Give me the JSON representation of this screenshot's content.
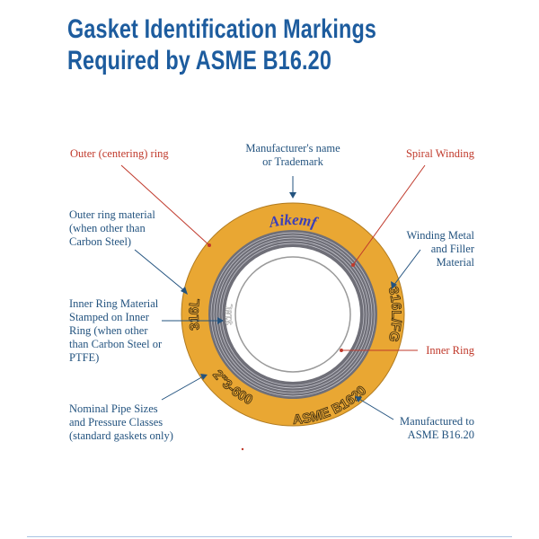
{
  "title": {
    "line1": "Gasket Identification Markings",
    "line2": "Required by ASME B16.20"
  },
  "labels": {
    "outer_ring": "Outer (centering) ring",
    "manufacturer": [
      "Manufacturer's name",
      "or Trademark"
    ],
    "spiral_winding": "Spiral Winding",
    "outer_ring_material": [
      "Outer ring material",
      "(when other than",
      "Carbon Steel)"
    ],
    "winding_metal": [
      "Winding Metal",
      "and Filler",
      "Material"
    ],
    "inner_ring_material": [
      "Inner Ring Material",
      "Stamped on Inner",
      "Ring (when other",
      "than Carbon Steel or",
      "PTFE)"
    ],
    "inner_ring": "Inner Ring",
    "nominal_pipe": [
      "Nominal Pipe Sizes",
      "and Pressure Classes",
      "(standard gaskets only)"
    ],
    "manufactured_to": [
      "Manufactured to",
      "ASME B16.20"
    ]
  },
  "gasket_markings": {
    "manufacturer": "Aikemf",
    "outer_ring_material": "316L",
    "inner_ring_material": "316L",
    "winding_filler": "316L/FG",
    "size_class": "2\"3-600",
    "standard": "ASME B1620"
  },
  "colors": {
    "title": "#1d5c9e",
    "ring": "#e9a733",
    "winding": "#6f6f78",
    "red_label": "#c0392b",
    "blue_label": "#23537f"
  }
}
